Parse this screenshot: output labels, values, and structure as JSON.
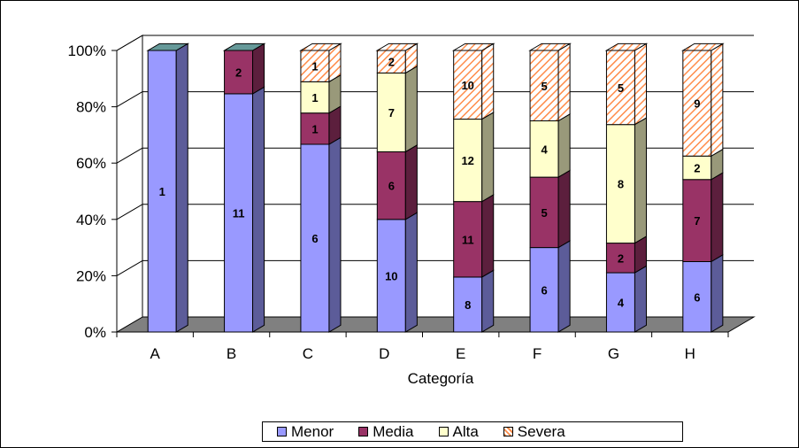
{
  "chart_data": {
    "type": "bar",
    "stacked": "percent",
    "title": "",
    "xlabel": "Categoría",
    "ylabel": "",
    "ylim": [
      0,
      100
    ],
    "yticks": [
      "0%",
      "20%",
      "40%",
      "60%",
      "80%",
      "100%"
    ],
    "grid": true,
    "legend_position": "bottom",
    "categories": [
      "A",
      "B",
      "C",
      "D",
      "E",
      "F",
      "G",
      "H"
    ],
    "series": [
      {
        "name": "Menor",
        "color": "#9999FF",
        "values": [
          1,
          11,
          6,
          10,
          8,
          6,
          4,
          6
        ]
      },
      {
        "name": "Media",
        "color": "#993366",
        "values": [
          0,
          2,
          1,
          6,
          11,
          5,
          2,
          7
        ]
      },
      {
        "name": "Alta",
        "color": "#FFFFCC",
        "values": [
          0,
          0,
          1,
          7,
          12,
          4,
          8,
          2
        ]
      },
      {
        "name": "Severa",
        "color": "#FF9966",
        "pattern": "diagonal-hatch",
        "values": [
          0,
          0,
          1,
          2,
          10,
          5,
          5,
          9
        ]
      }
    ]
  }
}
